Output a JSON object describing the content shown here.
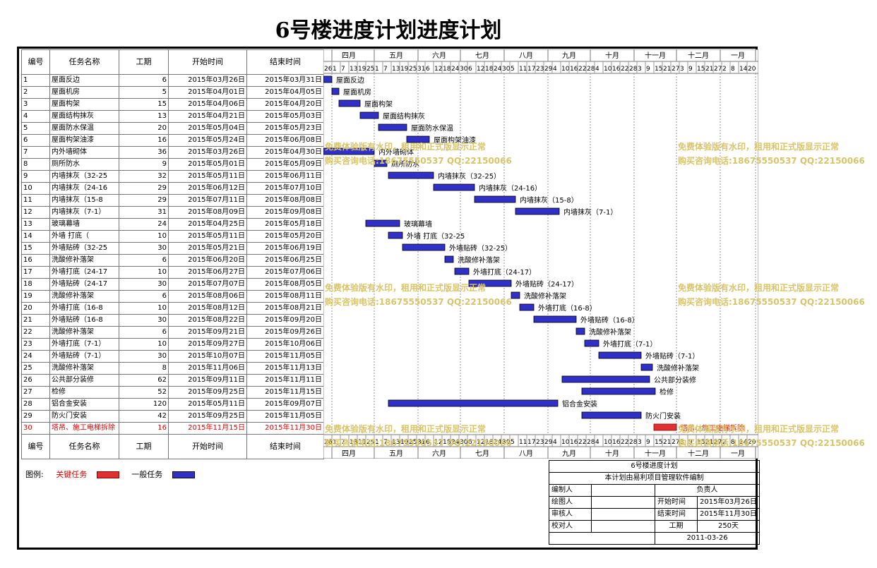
{
  "title": "6号楼进度计划进度计划",
  "headers": {
    "id": "编号",
    "name": "任务名称",
    "duration": "工期",
    "start": "开始时间",
    "end": "结束时间"
  },
  "months": [
    "四月",
    "五月",
    "六月",
    "七月",
    "八月",
    "九月",
    "十月",
    "十一月",
    "十二月",
    "一月"
  ],
  "days_header": "26 1 7 13 19 25 1 7 13 19 25 31 6 12 18 24 30 6 12 18 24 30 5 11 17 23 29 4 10 16 22 28 4 10 16 22 28 3 9 15 21 27 3 9 15 21 27 2 8 14 20",
  "tasks": [
    {
      "id": "1",
      "name": "屋面反边",
      "dur": "6",
      "start": "2015年03月26日",
      "end": "2015年03月31日",
      "label": "屋面反边",
      "s": 0,
      "e": 6
    },
    {
      "id": "2",
      "name": "屋面机房",
      "dur": "5",
      "start": "2015年04月01日",
      "end": "2015年04月05日",
      "label": "屋面机房",
      "s": 6,
      "e": 11
    },
    {
      "id": "3",
      "name": "屋面构架",
      "dur": "15",
      "start": "2015年04月06日",
      "end": "2015年04月20日",
      "label": "屋面构架",
      "s": 11,
      "e": 26
    },
    {
      "id": "4",
      "name": "屋面结构抹灰",
      "dur": "13",
      "start": "2015年04月21日",
      "end": "2015年05月03日",
      "label": "屋面结构抹灰",
      "s": 26,
      "e": 39
    },
    {
      "id": "5",
      "name": "屋面防水保温",
      "dur": "20",
      "start": "2015年05月04日",
      "end": "2015年05月23日",
      "label": "屋面防水保温",
      "s": 39,
      "e": 59
    },
    {
      "id": "6",
      "name": "屋面构架油漆",
      "dur": "16",
      "start": "2015年05月24日",
      "end": "2015年06月08日",
      "label": "屋面构架油漆",
      "s": 59,
      "e": 75
    },
    {
      "id": "7",
      "name": "内外墙砌体",
      "dur": "36",
      "start": "2015年03月26日",
      "end": "2015年04月30日",
      "label": "内外墙砌体",
      "s": 0,
      "e": 36
    },
    {
      "id": "8",
      "name": "厕所防水",
      "dur": "9",
      "start": "2015年05月01日",
      "end": "2015年05月09日",
      "label": "厕所防水",
      "s": 36,
      "e": 45
    },
    {
      "id": "9",
      "name": "内墙抹灰（32-25",
      "dur": "32",
      "start": "2015年05月11日",
      "end": "2015年06月11日",
      "label": "内墙抹灰（32-25）",
      "s": 46,
      "e": 78
    },
    {
      "id": "10",
      "name": "内墙抹灰（24-16",
      "dur": "29",
      "start": "2015年06月12日",
      "end": "2015年07月10日",
      "label": "内墙抹灰（24-16）",
      "s": 78,
      "e": 107
    },
    {
      "id": "11",
      "name": "内墙抹灰（15-8",
      "dur": "29",
      "start": "2015年07月11日",
      "end": "2015年08月08日",
      "label": "内墙抹灰（15-8）",
      "s": 107,
      "e": 136
    },
    {
      "id": "12",
      "name": "内墙抹灰（7-1）",
      "dur": "31",
      "start": "2015年08月09日",
      "end": "2015年09月08日",
      "label": "内墙抹灰（7-1）",
      "s": 136,
      "e": 167
    },
    {
      "id": "13",
      "name": "玻璃幕墙",
      "dur": "24",
      "start": "2015年04月25日",
      "end": "2015年05月18日",
      "label": "玻璃幕墙",
      "s": 30,
      "e": 54
    },
    {
      "id": "14",
      "name": "外墙 打底（",
      "dur": "10",
      "start": "2015年05月11日",
      "end": "2015年05月20日",
      "label": "外墙 打底（32-25",
      "s": 46,
      "e": 56
    },
    {
      "id": "15",
      "name": "外墙贴砖（32-25",
      "dur": "30",
      "start": "2015年05月21日",
      "end": "2015年06月19日",
      "label": "外墙贴砖（32-25）",
      "s": 56,
      "e": 86
    },
    {
      "id": "16",
      "name": "洗酸修补落架",
      "dur": "6",
      "start": "2015年06月20日",
      "end": "2015年06月25日",
      "label": "洗酸修补落架",
      "s": 86,
      "e": 92
    },
    {
      "id": "17",
      "name": "外墙打底（24-17",
      "dur": "10",
      "start": "2015年06月27日",
      "end": "2015年07月06日",
      "label": "外墙打底（24-17）",
      "s": 93,
      "e": 103
    },
    {
      "id": "18",
      "name": "外墙贴砖（24-17",
      "dur": "30",
      "start": "2015年07月07日",
      "end": "2015年08月05日",
      "label": "外墙贴砖（24-17）",
      "s": 103,
      "e": 133
    },
    {
      "id": "19",
      "name": "洗酸修补落架",
      "dur": "6",
      "start": "2015年08月06日",
      "end": "2015年08月11日",
      "label": "洗酸修补落架",
      "s": 133,
      "e": 139
    },
    {
      "id": "20",
      "name": "外墙打底（16-8",
      "dur": "10",
      "start": "2015年08月12日",
      "end": "2015年08月21日",
      "label": "外墙打底（16-8）",
      "s": 139,
      "e": 149
    },
    {
      "id": "21",
      "name": "外墙贴砖（16-8",
      "dur": "30",
      "start": "2015年08月22日",
      "end": "2015年09月20日",
      "label": "外墙贴砖（16-8）",
      "s": 149,
      "e": 179
    },
    {
      "id": "22",
      "name": "洗酸修补落架",
      "dur": "6",
      "start": "2015年09月21日",
      "end": "2015年09月26日",
      "label": "洗酸修补落架",
      "s": 179,
      "e": 185
    },
    {
      "id": "23",
      "name": "外墙打底（7-1）",
      "dur": "10",
      "start": "2015年09月27日",
      "end": "2015年10月06日",
      "label": "外墙打底（7-1）",
      "s": 185,
      "e": 195
    },
    {
      "id": "24",
      "name": "外墙贴砖（7-1）",
      "dur": "30",
      "start": "2015年10月07日",
      "end": "2015年11月05日",
      "label": "外墙贴砖（7-1）",
      "s": 195,
      "e": 225
    },
    {
      "id": "25",
      "name": "洗酸修补落架",
      "dur": "8",
      "start": "2015年11月06日",
      "end": "2015年11月13日",
      "label": "洗酸修补落架",
      "s": 225,
      "e": 233
    },
    {
      "id": "26",
      "name": "公共部分装修",
      "dur": "62",
      "start": "2015年09月11日",
      "end": "2015年11月11日",
      "label": "公共部分装修",
      "s": 169,
      "e": 231
    },
    {
      "id": "27",
      "name": "检修",
      "dur": "52",
      "start": "2015年09月25日",
      "end": "2015年11月15日",
      "label": "检修",
      "s": 183,
      "e": 235
    },
    {
      "id": "28",
      "name": "铝合金安装",
      "dur": "120",
      "start": "2015年05月11日",
      "end": "2015年09月07日",
      "label": "铝合金安装",
      "s": 46,
      "e": 166
    },
    {
      "id": "29",
      "name": "防火门安装",
      "dur": "42",
      "start": "2015年09月25日",
      "end": "2015年11月05日",
      "label": "防火门安装",
      "s": 183,
      "e": 225
    },
    {
      "id": "30",
      "name": "塔吊、施工电梯拆除",
      "dur": "16",
      "start": "2015年11月15日",
      "end": "2015年11月30日",
      "label": "塔吊、施工电梯拆除",
      "s": 234,
      "e": 250,
      "critical": true
    }
  ],
  "legend": {
    "title": "图例:",
    "critical": "关键任务",
    "normal": "一般任务"
  },
  "info": {
    "project": "6号楼进度计划",
    "software": "本计划由易利项目管理软件编制",
    "editor_label": "编制人",
    "leader_label": "负责人",
    "drawer_label": "绘图人",
    "start_label": "开始时间",
    "start_value": "2015年03月26日",
    "reviewer_label": "审核人",
    "end_label": "结束时间",
    "end_value": "2015年11月30日",
    "checker_label": "校对人",
    "duration_label": "工期",
    "duration_value": "250天",
    "date": "2011-03-26"
  },
  "watermark": {
    "line1": "免费体验版有水印，租用和正式版显示正常",
    "line2": "购买咨询电话:18675550537 QQ:22150066"
  },
  "colors": {
    "normal_bar": "#3030c8",
    "critical_bar": "#e03030",
    "watermark": "#d9c46a",
    "critical_text": "#e00000"
  }
}
